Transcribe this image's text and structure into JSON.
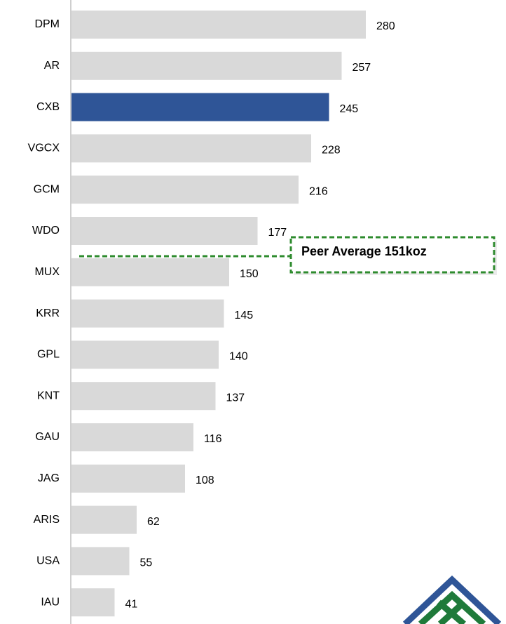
{
  "chart_data": {
    "type": "bar",
    "orientation": "horizontal",
    "categories": [
      "DPM",
      "AR",
      "CXB",
      "VGCX",
      "GCM",
      "WDO",
      "MUX",
      "KRR",
      "GPL",
      "KNT",
      "GAU",
      "JAG",
      "ARIS",
      "USA",
      "IAU"
    ],
    "values": [
      280,
      257,
      245,
      228,
      216,
      177,
      150,
      145,
      140,
      137,
      116,
      108,
      62,
      55,
      41
    ],
    "colors": [
      "#d9d9d9",
      "#d9d9d9",
      "#2f5597",
      "#d9d9d9",
      "#d9d9d9",
      "#d9d9d9",
      "#d9d9d9",
      "#d9d9d9",
      "#d9d9d9",
      "#d9d9d9",
      "#d9d9d9",
      "#d9d9d9",
      "#d9d9d9",
      "#d9d9d9",
      "#d9d9d9"
    ],
    "xlim": [
      0,
      400
    ],
    "annotation": "Peer Average 151koz"
  }
}
